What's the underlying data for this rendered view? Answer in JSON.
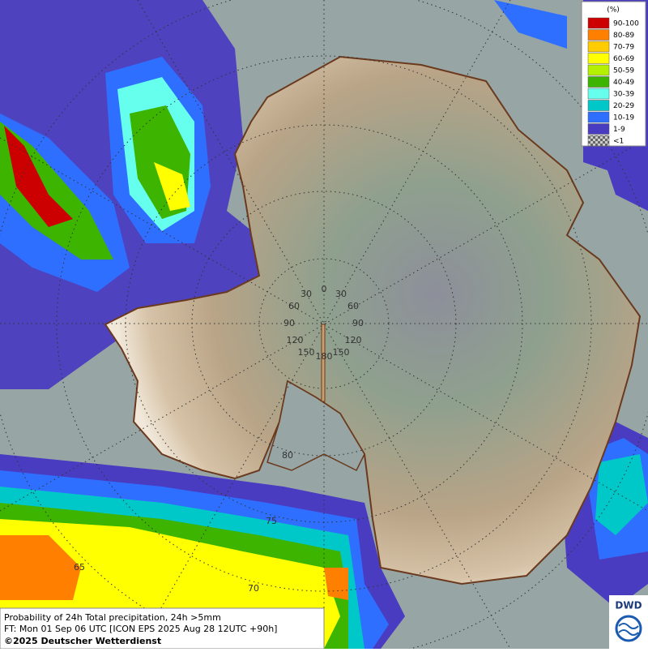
{
  "legend": {
    "title": "(%)",
    "entries": [
      {
        "label": "90-100",
        "color": "#cc0000"
      },
      {
        "label": "80-89",
        "color": "#ff8000"
      },
      {
        "label": "70-79",
        "color": "#ffcc00"
      },
      {
        "label": "60-69",
        "color": "#ffff00"
      },
      {
        "label": "50-59",
        "color": "#b4f000"
      },
      {
        "label": "40-49",
        "color": "#3cb400"
      },
      {
        "label": "30-39",
        "color": "#66ffee"
      },
      {
        "label": "20-29",
        "color": "#00c8c8"
      },
      {
        "label": "10-19",
        "color": "#2f6fff"
      },
      {
        "label": "1-9",
        "color": "#4a3cc0"
      },
      {
        "label": "<1",
        "color": "checker"
      }
    ]
  },
  "graticule": {
    "longitude_labels": [
      "0",
      "30",
      "30",
      "60",
      "60",
      "90",
      "90",
      "120",
      "120",
      "150",
      "150",
      "180"
    ],
    "latitude_labels": [
      "80",
      "75",
      "70",
      "65"
    ]
  },
  "caption": [
    "Probability of 24h Total precipitation, 24h >5mm",
    "FT: Mon 01 Sep 06 UTC [ICON EPS 2025 Aug 28 12UTC +90h]",
    "©2025 Deutscher Wetterdienst"
  ],
  "logo": "DWD"
}
